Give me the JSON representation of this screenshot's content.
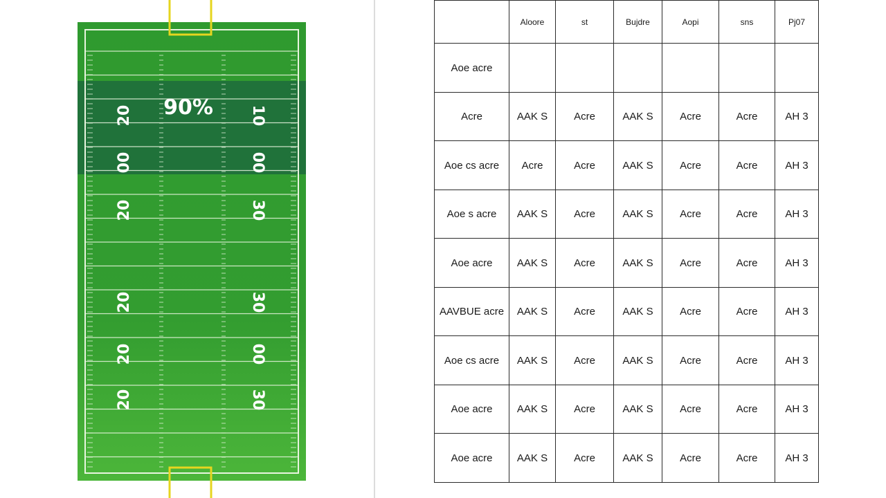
{
  "field": {
    "percent_label": "90%",
    "yard_numbers_left": [
      "20",
      "00",
      "20",
      "20",
      "20",
      "20"
    ],
    "yard_numbers_right": [
      "10",
      "00",
      "30",
      "30",
      "00",
      "30"
    ],
    "colors": {
      "field_green": "#2f9a2f",
      "field_light": "#4cb63a",
      "shaded_band": "#1d6b3c",
      "lines": "#e9f5e0",
      "goalpost": "#e6d51f"
    }
  },
  "table": {
    "headers": [
      "",
      "Aloore",
      "st",
      "Bujdre",
      "Aopi",
      "sns",
      "Pj07"
    ],
    "rows": [
      [
        "Aoe acre",
        "",
        "",
        "",
        "",
        "",
        ""
      ],
      [
        "Acre",
        "AAK S",
        "Acre",
        "AAK S",
        "Acre",
        "Acre",
        "AH 3"
      ],
      [
        "Aoe cs acre",
        "Acre",
        "Acre",
        "AAK S",
        "Acre",
        "Acre",
        "AH 3"
      ],
      [
        "Aoe s acre",
        "AAK S",
        "Acre",
        "AAK S",
        "Acre",
        "Acre",
        "AH 3"
      ],
      [
        "Aoe acre",
        "AAK S",
        "Acre",
        "AAK S",
        "Acre",
        "Acre",
        "AH 3"
      ],
      [
        "AAVBUE acre",
        "AAK S",
        "Acre",
        "AAK S",
        "Acre",
        "Acre",
        "AH 3"
      ],
      [
        "Aoe cs acre",
        "AAK S",
        "Acre",
        "AAK S",
        "Acre",
        "Acre",
        "AH 3"
      ],
      [
        "Aoe acre",
        "AAK S",
        "Acre",
        "AAK S",
        "Acre",
        "Acre",
        "AH 3"
      ],
      [
        "Aoe acre",
        "AAK S",
        "Acre",
        "AAK S",
        "Acre",
        "Acre",
        "AH 3"
      ]
    ]
  }
}
